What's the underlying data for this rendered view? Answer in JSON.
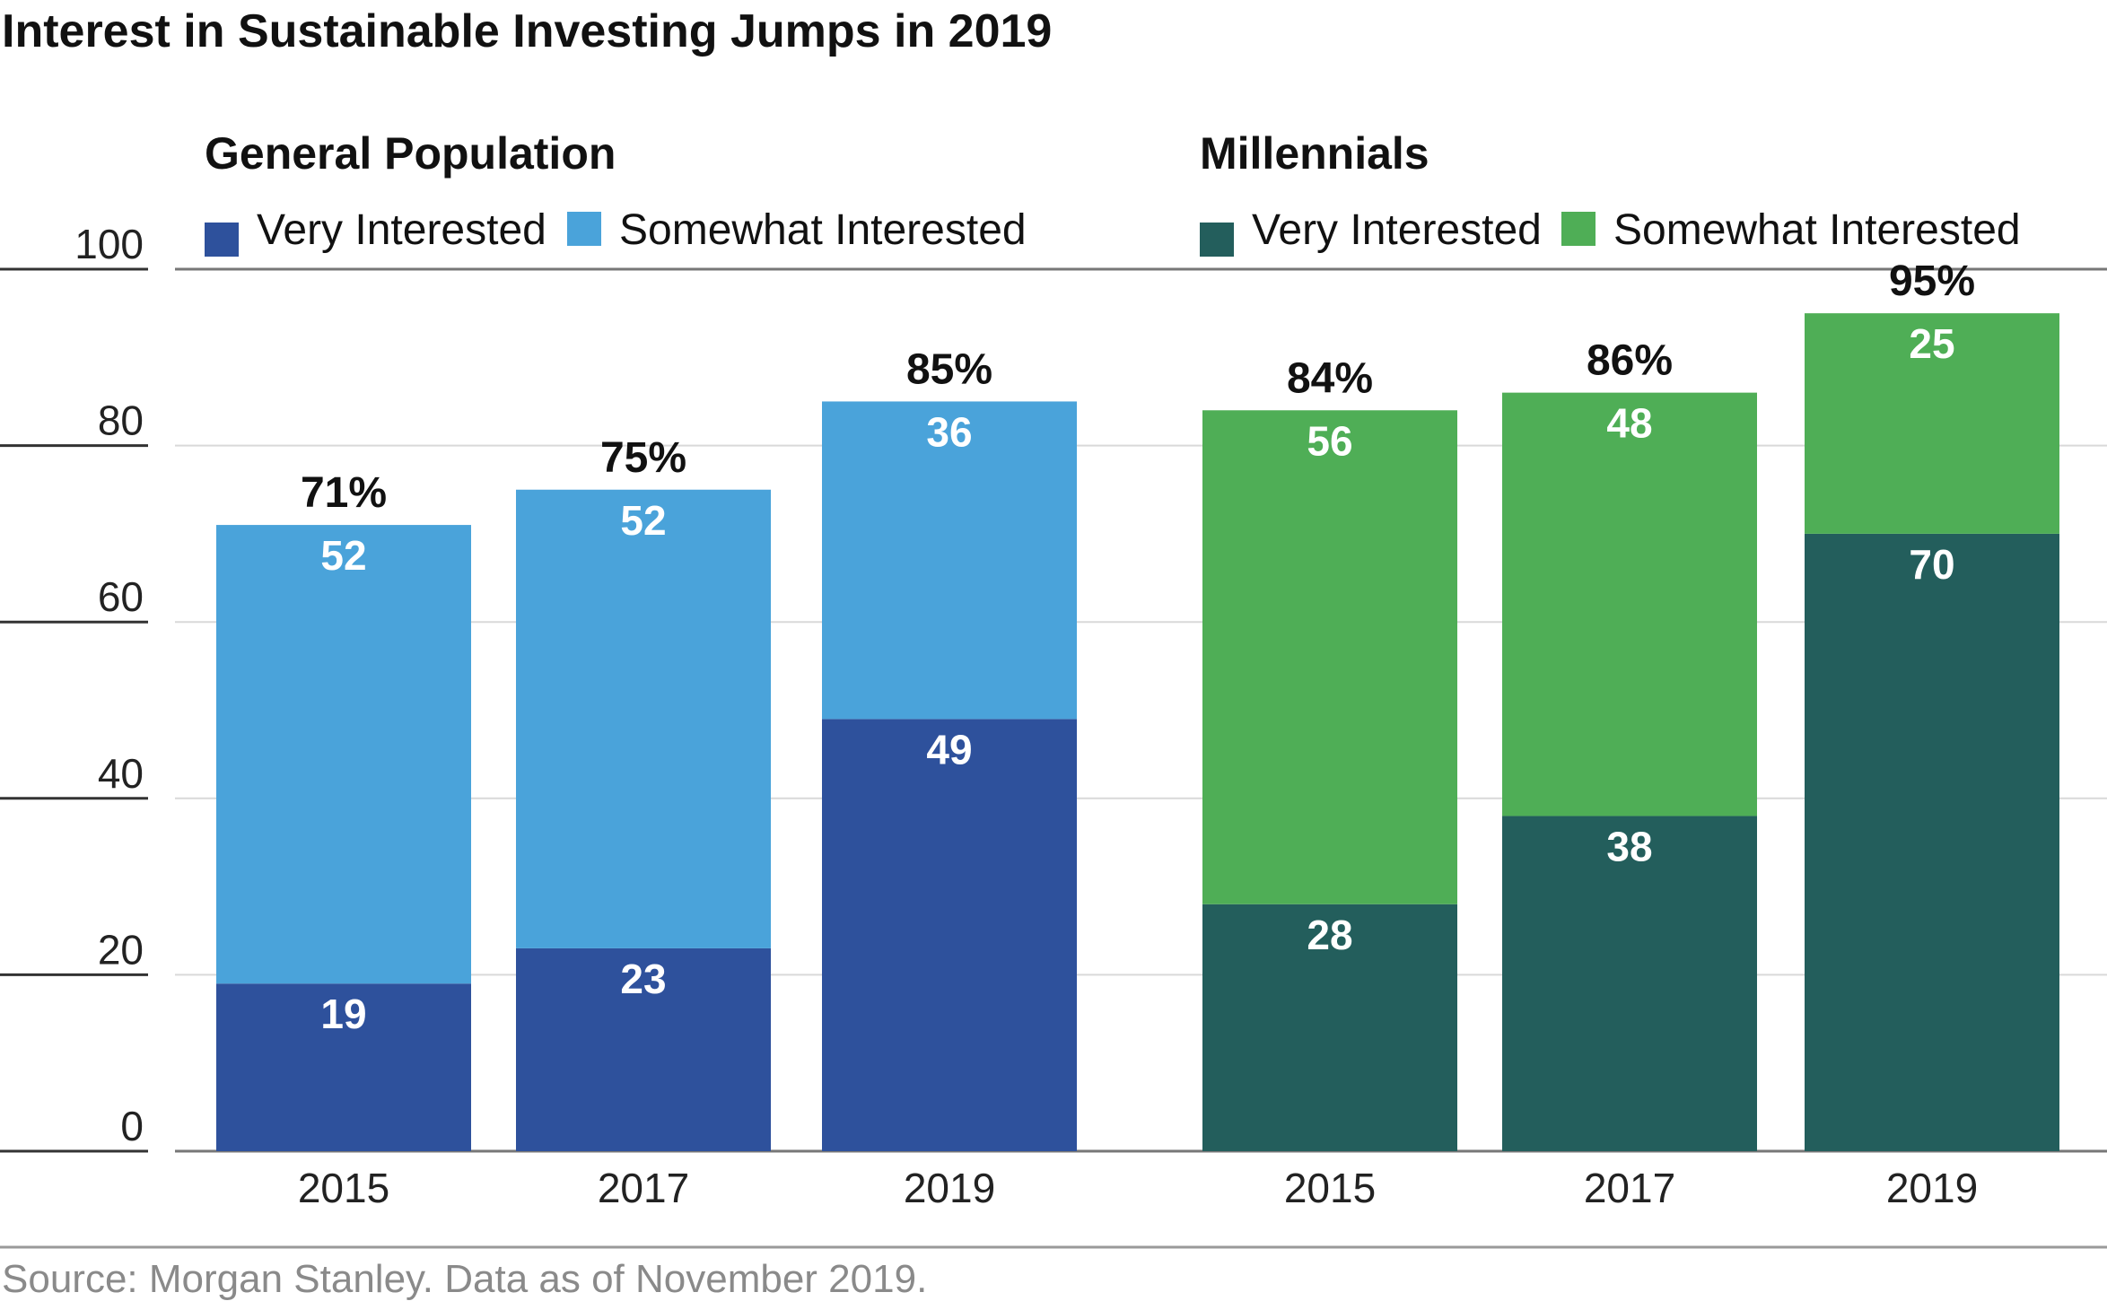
{
  "title": "Interest in Sustainable Investing Jumps in 2019",
  "source": "Source: Morgan Stanley. Data as of November 2019.",
  "chart_data": {
    "type": "bar",
    "stacked": true,
    "ylim": [
      0,
      100
    ],
    "y_ticks": [
      "0",
      "20",
      "40",
      "60",
      "80",
      "100"
    ],
    "grid": true,
    "groups": [
      {
        "name": "General Population",
        "categories": [
          "2015",
          "2017",
          "2019"
        ],
        "totals": [
          "71%",
          "75%",
          "85%"
        ],
        "series": [
          {
            "name": "Very Interested",
            "color": "#2e519c",
            "values": [
              19,
              23,
              49
            ]
          },
          {
            "name": "Somewhat Interested",
            "color": "#4aa3da",
            "values": [
              52,
              52,
              36
            ]
          }
        ]
      },
      {
        "name": "Millennials",
        "categories": [
          "2015",
          "2017",
          "2019"
        ],
        "totals": [
          "84%",
          "86%",
          "95%"
        ],
        "series": [
          {
            "name": "Very Interested",
            "color": "#235e5c",
            "values": [
              28,
              38,
              70
            ]
          },
          {
            "name": "Somewhat Interested",
            "color": "#4fae56",
            "values": [
              56,
              48,
              25
            ]
          }
        ]
      }
    ]
  }
}
